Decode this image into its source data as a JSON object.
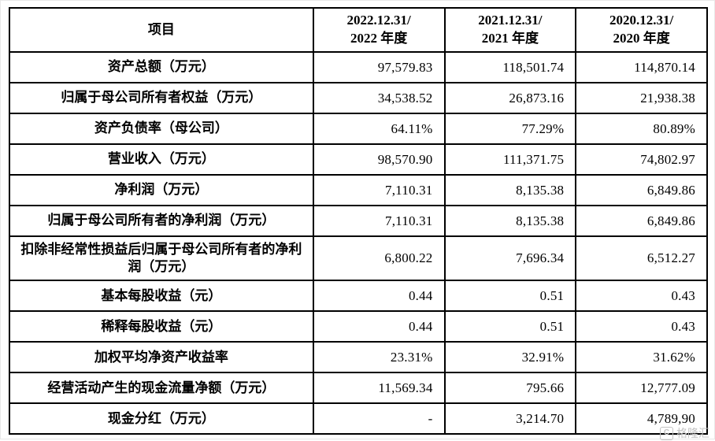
{
  "table": {
    "header": {
      "item": "项目",
      "cols": [
        {
          "line1": "2022.12.31/",
          "line2": "2022 年度"
        },
        {
          "line1": "2021.12.31/",
          "line2": "2021 年度"
        },
        {
          "line1": "2020.12.31/",
          "line2": "2020 年度"
        }
      ]
    },
    "rows": [
      {
        "label": "资产总额（万元）",
        "values": [
          "97,579.83",
          "118,501.74",
          "114,870.14"
        ]
      },
      {
        "label": "归属于母公司所有者权益（万元）",
        "values": [
          "34,538.52",
          "26,873.16",
          "21,938.38"
        ]
      },
      {
        "label": "资产负债率（母公司）",
        "values": [
          "64.11%",
          "77.29%",
          "80.89%"
        ]
      },
      {
        "label": "营业收入（万元）",
        "values": [
          "98,570.90",
          "111,371.75",
          "74,802.97"
        ]
      },
      {
        "label": "净利润（万元）",
        "values": [
          "7,110.31",
          "8,135.38",
          "6,849.86"
        ]
      },
      {
        "label": "归属于母公司所有者的净利润（万元）",
        "values": [
          "7,110.31",
          "8,135.38",
          "6,849.86"
        ]
      },
      {
        "label": "扣除非经常性损益后归属于母公司所有者的净利润（万元）",
        "values": [
          "6,800.22",
          "7,696.34",
          "6,512.27"
        ]
      },
      {
        "label": "基本每股收益（元）",
        "values": [
          "0.44",
          "0.51",
          "0.43"
        ]
      },
      {
        "label": "稀释每股收益（元）",
        "values": [
          "0.44",
          "0.51",
          "0.43"
        ]
      },
      {
        "label": "加权平均净资产收益率",
        "values": [
          "23.31%",
          "32.91%",
          "31.62%"
        ]
      },
      {
        "label": "经营活动产生的现金流量净额（万元）",
        "values": [
          "11,569.34",
          "795.66",
          "12,777.09"
        ]
      },
      {
        "label": "现金分红（万元）",
        "values": [
          "-",
          "3,214.70",
          "4,789,90"
        ]
      }
    ]
  },
  "watermark": {
    "icon": "C",
    "text": "格隆汇"
  }
}
